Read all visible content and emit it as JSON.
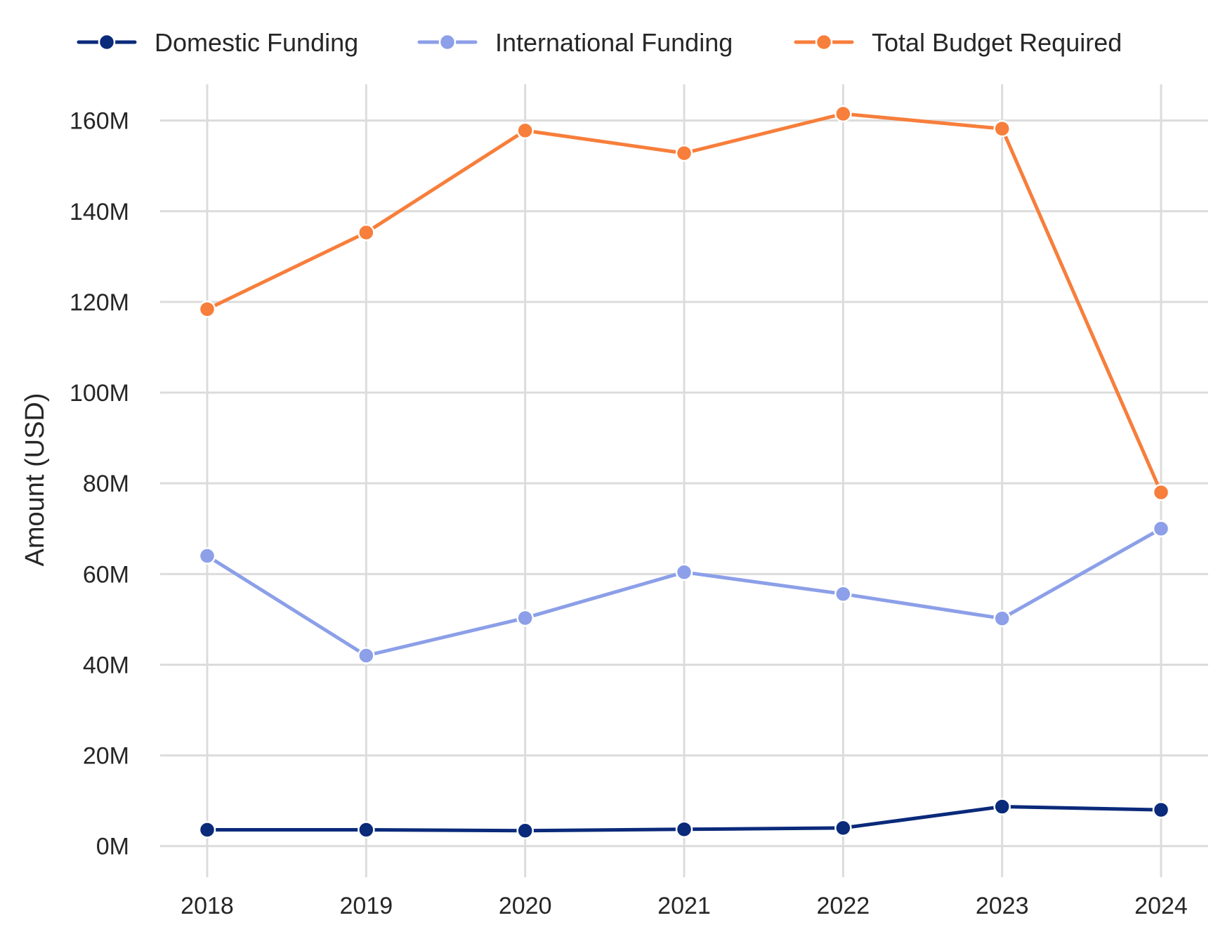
{
  "chart_data": {
    "type": "line",
    "title": "",
    "xlabel": "",
    "ylabel": "Amount (USD)",
    "x": [
      2018,
      2019,
      2020,
      2021,
      2022,
      2023,
      2024
    ],
    "x_tick_labels": [
      "2018",
      "2019",
      "2020",
      "2021",
      "2022",
      "2023",
      "2024"
    ],
    "ylim": [
      -5000000,
      168000000
    ],
    "y_ticks": [
      0,
      20000000,
      40000000,
      60000000,
      80000000,
      100000000,
      120000000,
      140000000,
      160000000
    ],
    "y_tick_labels": [
      "0M",
      "20M",
      "40M",
      "60M",
      "80M",
      "100M",
      "120M",
      "140M",
      "160M"
    ],
    "grid": true,
    "legend_position": "top",
    "series": [
      {
        "name": "Domestic Funding",
        "color": "#0a2a7a",
        "values": [
          3600000,
          3600000,
          3400000,
          3700000,
          4000000,
          8700000,
          8000000
        ]
      },
      {
        "name": "International Funding",
        "color": "#8c9fe8",
        "values": [
          64000000,
          42000000,
          50300000,
          60400000,
          55600000,
          50200000,
          70000000
        ]
      },
      {
        "name": "Total Budget Required",
        "color": "#f77e3b",
        "values": [
          118400000,
          135300000,
          157800000,
          152800000,
          161500000,
          158200000,
          78000000
        ]
      }
    ]
  }
}
